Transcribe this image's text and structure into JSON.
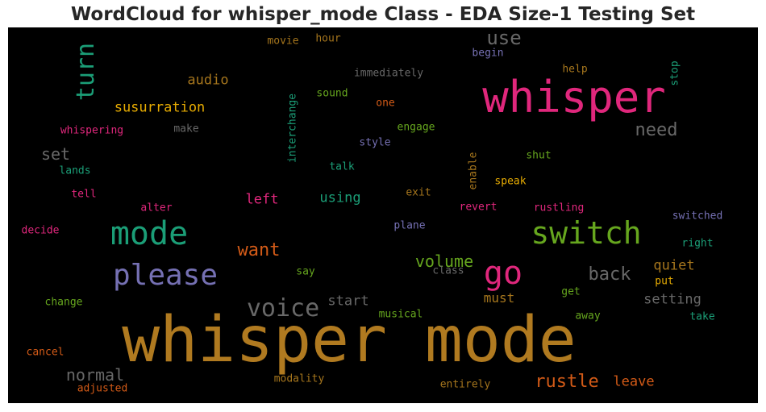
{
  "colors": {
    "gold": "#b07a20",
    "orange": "#d25a17",
    "pink": "#e0277c",
    "teal": "#1b9e77",
    "green": "#66a61e",
    "purple": "#7570b3",
    "gray": "#686868",
    "amber": "#e6ab02",
    "brown": "#a6761d"
  },
  "chart_data": {
    "type": "wordcloud",
    "title": "WordCloud for whisper_mode Class - EDA Size-1 Testing Set",
    "words": [
      {
        "text": "whisper mode",
        "size": 78,
        "color": "gold"
      },
      {
        "text": "whisper",
        "size": 54,
        "color": "pink"
      },
      {
        "text": "switch",
        "size": 38,
        "color": "green"
      },
      {
        "text": "mode",
        "size": 40,
        "color": "teal"
      },
      {
        "text": "please",
        "size": 36,
        "color": "purple"
      },
      {
        "text": "go",
        "size": 40,
        "color": "pink"
      },
      {
        "text": "turn",
        "size": 30,
        "color": "teal",
        "vertical": true
      },
      {
        "text": "voice",
        "size": 30,
        "color": "gray"
      },
      {
        "text": "use",
        "size": 24,
        "color": "gray"
      },
      {
        "text": "need",
        "size": 22,
        "color": "gray"
      },
      {
        "text": "rustle",
        "size": 22,
        "color": "orange"
      },
      {
        "text": "want",
        "size": 22,
        "color": "orange"
      },
      {
        "text": "back",
        "size": 22,
        "color": "gray"
      },
      {
        "text": "volume",
        "size": 20,
        "color": "green"
      },
      {
        "text": "normal",
        "size": 20,
        "color": "gray"
      },
      {
        "text": "set",
        "size": 20,
        "color": "gray"
      },
      {
        "text": "susurration",
        "size": 17,
        "color": "amber"
      },
      {
        "text": "audio",
        "size": 17,
        "color": "brown"
      },
      {
        "text": "left",
        "size": 17,
        "color": "pink"
      },
      {
        "text": "using",
        "size": 17,
        "color": "teal"
      },
      {
        "text": "quiet",
        "size": 17,
        "color": "brown"
      },
      {
        "text": "setting",
        "size": 17,
        "color": "gray"
      },
      {
        "text": "start",
        "size": 17,
        "color": "gray"
      },
      {
        "text": "must",
        "size": 16,
        "color": "brown"
      },
      {
        "text": "leave",
        "size": 17,
        "color": "orange"
      },
      {
        "text": "movie",
        "size": 13,
        "color": "brown"
      },
      {
        "text": "hour",
        "size": 13,
        "color": "brown"
      },
      {
        "text": "immediately",
        "size": 13,
        "color": "gray"
      },
      {
        "text": "begin",
        "size": 13,
        "color": "purple"
      },
      {
        "text": "help",
        "size": 13,
        "color": "brown"
      },
      {
        "text": "stop",
        "size": 13,
        "color": "teal",
        "vertical": true
      },
      {
        "text": "sound",
        "size": 13,
        "color": "green"
      },
      {
        "text": "one",
        "size": 13,
        "color": "orange"
      },
      {
        "text": "interchange",
        "size": 13,
        "color": "teal",
        "vertical": true
      },
      {
        "text": "whispering",
        "size": 13,
        "color": "pink"
      },
      {
        "text": "make",
        "size": 13,
        "color": "gray"
      },
      {
        "text": "engage",
        "size": 13,
        "color": "green"
      },
      {
        "text": "style",
        "size": 13,
        "color": "purple"
      },
      {
        "text": "enable",
        "size": 13,
        "color": "brown",
        "vertical": true
      },
      {
        "text": "shut",
        "size": 13,
        "color": "green"
      },
      {
        "text": "lands",
        "size": 13,
        "color": "teal"
      },
      {
        "text": "talk",
        "size": 13,
        "color": "teal"
      },
      {
        "text": "speak",
        "size": 13,
        "color": "amber"
      },
      {
        "text": "tell",
        "size": 13,
        "color": "pink"
      },
      {
        "text": "exit",
        "size": 13,
        "color": "brown"
      },
      {
        "text": "alter",
        "size": 13,
        "color": "pink"
      },
      {
        "text": "revert",
        "size": 13,
        "color": "pink"
      },
      {
        "text": "rustling",
        "size": 13,
        "color": "pink"
      },
      {
        "text": "switched",
        "size": 13,
        "color": "purple"
      },
      {
        "text": "decide",
        "size": 13,
        "color": "pink"
      },
      {
        "text": "plane",
        "size": 13,
        "color": "purple"
      },
      {
        "text": "right",
        "size": 13,
        "color": "teal"
      },
      {
        "text": "say",
        "size": 13,
        "color": "green"
      },
      {
        "text": "class",
        "size": 13,
        "color": "gray"
      },
      {
        "text": "put",
        "size": 13,
        "color": "amber"
      },
      {
        "text": "change",
        "size": 13,
        "color": "green"
      },
      {
        "text": "get",
        "size": 13,
        "color": "green"
      },
      {
        "text": "musical",
        "size": 13,
        "color": "green"
      },
      {
        "text": "away",
        "size": 13,
        "color": "green"
      },
      {
        "text": "take",
        "size": 13,
        "color": "teal"
      },
      {
        "text": "cancel",
        "size": 13,
        "color": "orange"
      },
      {
        "text": "modality",
        "size": 13,
        "color": "brown"
      },
      {
        "text": "entirely",
        "size": 13,
        "color": "brown"
      },
      {
        "text": "adjusted",
        "size": 13,
        "color": "orange"
      }
    ]
  }
}
